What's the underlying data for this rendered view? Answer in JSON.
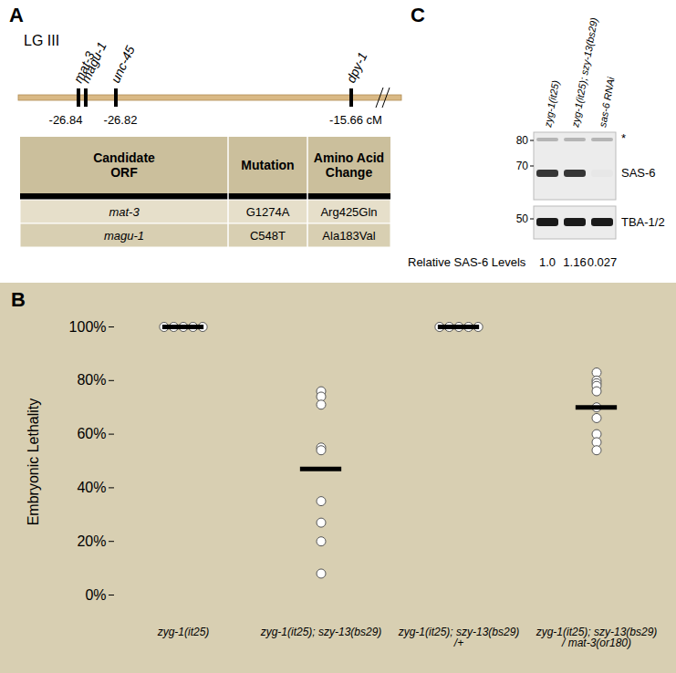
{
  "chart_data": {
    "type": "scatter",
    "label": "B",
    "y_label": "Embryonic Lethality",
    "categories": [
      "zyg-1(it25)",
      "zyg-1(it25); szy-13(bs29)",
      "zyg-1(it25); szy-13(bs29) /+",
      "zyg-1(it25); szy-13(bs29) / mat-3(or180)"
    ],
    "points": [
      [
        100,
        100,
        100,
        100,
        100
      ],
      [
        76,
        74,
        71,
        55,
        54,
        35,
        27,
        20,
        8
      ],
      [
        100,
        100,
        100,
        100,
        100
      ],
      [
        83,
        80,
        79,
        78,
        76,
        70,
        66,
        60,
        57,
        54
      ]
    ],
    "means": [
      100,
      47,
      100,
      70
    ],
    "ylim": [
      0,
      100
    ],
    "yticks": [
      {
        "value": 0,
        "label": "0%"
      },
      {
        "value": 20,
        "label": "20%"
      },
      {
        "value": 40,
        "label": "40%"
      },
      {
        "value": 60,
        "label": "60%"
      },
      {
        "value": 80,
        "label": "80%"
      },
      {
        "value": 100,
        "label": "100%"
      }
    ]
  },
  "panel_a": {
    "label": "A",
    "chromosome": "LG III",
    "genes": [
      "mat-3",
      "magu-1",
      "unc-45",
      "dpy-1"
    ],
    "positions": [
      "-26.84",
      "-26.82",
      "-15.66 cM"
    ],
    "table": {
      "header": [
        "Candidate ORF",
        "Mutation",
        "Amino Acid Change"
      ],
      "rows": [
        [
          "mat-3",
          "G1274A",
          "Arg425Gln"
        ],
        [
          "magu-1",
          "C548T",
          "Ala183Val"
        ]
      ]
    }
  },
  "panel_c": {
    "label": "C",
    "lanes": [
      "zyg-1(it25)",
      "zyg-1(it25); szy-13(bs29)",
      "sas-6 RNAi"
    ],
    "markers": [
      80,
      70,
      50
    ],
    "bands": [
      "*",
      "SAS-6",
      "TBA-1/2"
    ],
    "levels_label": "Relative SAS-6 Levels",
    "relative_levels": [
      {
        "value": 1,
        "label": "1.0"
      },
      {
        "value": 1.16,
        "label": "1.16"
      },
      {
        "value": 0.027,
        "label": "0.027"
      }
    ]
  }
}
